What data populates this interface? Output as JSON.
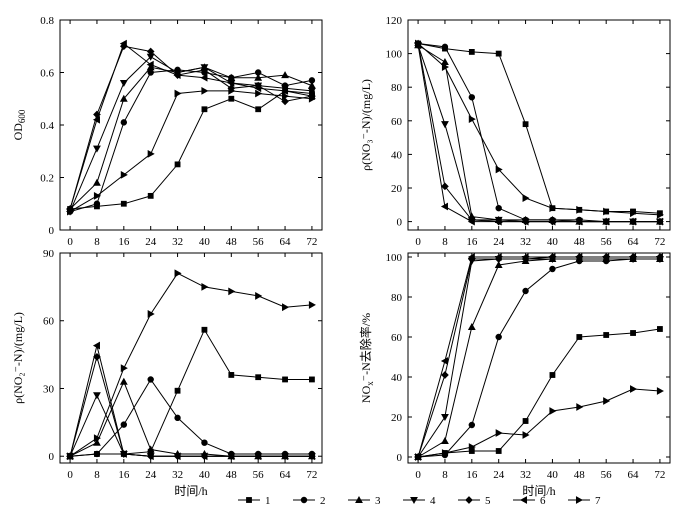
{
  "chart_data": [
    {
      "type": "line",
      "xlabel": "",
      "ylabel": "OD600",
      "ylabel_main": "OD",
      "ylabel_sub": "600",
      "x": [
        0,
        8,
        16,
        24,
        32,
        40,
        48,
        56,
        64,
        72
      ],
      "xlim": [
        -3,
        75
      ],
      "ylim": [
        0,
        0.8
      ],
      "yticks": [
        0,
        0.2,
        0.4,
        0.6,
        0.8
      ],
      "yticklabels": [
        "0",
        "0.2",
        "0.4",
        "0.6",
        "0.8"
      ],
      "series": [
        {
          "name": "1",
          "values": [
            0.08,
            0.09,
            0.1,
            0.13,
            0.25,
            0.46,
            0.5,
            0.46,
            0.53,
            0.52
          ]
        },
        {
          "name": "2",
          "values": [
            0.07,
            0.1,
            0.41,
            0.6,
            0.61,
            0.6,
            0.58,
            0.6,
            0.55,
            0.57
          ]
        },
        {
          "name": "3",
          "values": [
            0.08,
            0.18,
            0.5,
            0.62,
            0.6,
            0.62,
            0.58,
            0.58,
            0.59,
            0.55
          ]
        },
        {
          "name": "4",
          "values": [
            0.07,
            0.31,
            0.56,
            0.66,
            0.6,
            0.62,
            0.56,
            0.55,
            0.54,
            0.53
          ]
        },
        {
          "name": "5",
          "values": [
            0.08,
            0.44,
            0.7,
            0.68,
            0.59,
            0.61,
            0.54,
            0.55,
            0.49,
            0.51
          ]
        },
        {
          "name": "6",
          "values": [
            0.08,
            0.42,
            0.71,
            0.63,
            0.59,
            0.58,
            0.56,
            0.54,
            0.53,
            0.51
          ]
        },
        {
          "name": "7",
          "values": [
            0.07,
            0.13,
            0.21,
            0.29,
            0.52,
            0.53,
            0.53,
            0.52,
            0.51,
            0.5
          ]
        }
      ]
    },
    {
      "type": "line",
      "xlabel": "",
      "ylabel": "ρ(NO₃⁻-N)/(mg/L)",
      "ylabel_main": "ρ(NO₃⁻-N)/(mg/L)",
      "x": [
        0,
        8,
        16,
        24,
        32,
        40,
        48,
        56,
        64,
        72
      ],
      "xlim": [
        -3,
        75
      ],
      "ylim": [
        -5,
        120
      ],
      "yticks": [
        0,
        20,
        40,
        60,
        80,
        100,
        120
      ],
      "yticklabels": [
        "0",
        "20",
        "40",
        "60",
        "80",
        "100",
        "120"
      ],
      "series": [
        {
          "name": "1",
          "values": [
            106,
            103,
            101,
            100,
            58,
            8,
            7,
            6,
            6,
            5
          ]
        },
        {
          "name": "2",
          "values": [
            106,
            104,
            74,
            8,
            1,
            1,
            1,
            0,
            0,
            0
          ]
        },
        {
          "name": "3",
          "values": [
            105,
            95,
            3,
            1,
            1,
            1,
            0,
            0,
            0,
            0
          ]
        },
        {
          "name": "4",
          "values": [
            105,
            58,
            1,
            1,
            0,
            0,
            0,
            0,
            0,
            0
          ]
        },
        {
          "name": "5",
          "values": [
            106,
            21,
            1,
            0,
            0,
            0,
            0,
            0,
            0,
            0
          ]
        },
        {
          "name": "6",
          "values": [
            105,
            9,
            0,
            0,
            0,
            0,
            0,
            0,
            0,
            0
          ]
        },
        {
          "name": "7",
          "values": [
            106,
            92,
            61,
            31,
            14,
            8,
            7,
            6,
            5,
            4
          ]
        }
      ]
    },
    {
      "type": "line",
      "xlabel": "时间/h",
      "ylabel": "ρ(NO₂⁻-N)/(mg/L)",
      "ylabel_main": "ρ(NO₂⁻-N)/(mg/L)",
      "x": [
        0,
        8,
        16,
        24,
        32,
        40,
        48,
        56,
        64,
        72
      ],
      "xlim": [
        -3,
        75
      ],
      "ylim": [
        -3,
        90
      ],
      "yticks": [
        0,
        30,
        60,
        90
      ],
      "yticklabels": [
        "0",
        "30",
        "60",
        "90"
      ],
      "series": [
        {
          "name": "1",
          "values": [
            0,
            1,
            1,
            2,
            29,
            56,
            36,
            35,
            34,
            34
          ]
        },
        {
          "name": "2",
          "values": [
            0,
            1,
            14,
            34,
            17,
            6,
            1,
            1,
            1,
            1
          ]
        },
        {
          "name": "3",
          "values": [
            0,
            6,
            33,
            3,
            1,
            1,
            0,
            0,
            0,
            0
          ]
        },
        {
          "name": "4",
          "values": [
            0,
            27,
            1,
            0,
            0,
            0,
            0,
            0,
            0,
            0
          ]
        },
        {
          "name": "5",
          "values": [
            0,
            44,
            1,
            0,
            0,
            0,
            0,
            0,
            0,
            0
          ]
        },
        {
          "name": "6",
          "values": [
            0,
            49,
            1,
            0,
            0,
            0,
            0,
            0,
            0,
            0
          ]
        },
        {
          "name": "7",
          "values": [
            0,
            8,
            39,
            63,
            81,
            75,
            73,
            71,
            66,
            67
          ]
        }
      ]
    },
    {
      "type": "line",
      "xlabel": "时间/h",
      "ylabel": "NOx⁻-N去除率/%",
      "ylabel_main": "NO",
      "ylabel_sub": "x",
      "ylabel_rest": "⁻-N去除率/%",
      "x": [
        0,
        8,
        16,
        24,
        32,
        40,
        48,
        56,
        64,
        72
      ],
      "xlim": [
        -3,
        75
      ],
      "ylim": [
        -3,
        102
      ],
      "yticks": [
        0,
        20,
        40,
        60,
        80,
        100
      ],
      "yticklabels": [
        "0",
        "20",
        "40",
        "60",
        "80",
        "100"
      ],
      "series": [
        {
          "name": "1",
          "values": [
            0,
            2,
            3,
            3,
            18,
            41,
            60,
            61,
            62,
            64
          ]
        },
        {
          "name": "2",
          "values": [
            0,
            1,
            16,
            60,
            83,
            94,
            98,
            98,
            99,
            99
          ]
        },
        {
          "name": "3",
          "values": [
            0,
            8,
            65,
            96,
            98,
            99,
            99,
            99,
            99,
            99
          ]
        },
        {
          "name": "4",
          "values": [
            0,
            20,
            98,
            99,
            99,
            99,
            99,
            99,
            99,
            99
          ]
        },
        {
          "name": "5",
          "values": [
            0,
            41,
            99,
            99,
            99,
            100,
            100,
            100,
            100,
            100
          ]
        },
        {
          "name": "6",
          "values": [
            0,
            48,
            100,
            100,
            100,
            100,
            100,
            100,
            100,
            100
          ]
        },
        {
          "name": "7",
          "values": [
            0,
            2,
            5,
            12,
            11,
            23,
            25,
            28,
            34,
            33
          ]
        }
      ]
    }
  ],
  "xticklabels": [
    "0",
    "8",
    "16",
    "24",
    "32",
    "40",
    "48",
    "56",
    "64",
    "72"
  ],
  "legend": [
    "1",
    "2",
    "3",
    "4",
    "5",
    "6",
    "7"
  ],
  "markers": [
    "square",
    "circle",
    "triangle-up",
    "triangle-down",
    "diamond",
    "triangle-left",
    "triangle-right"
  ],
  "line_color": "#000000"
}
